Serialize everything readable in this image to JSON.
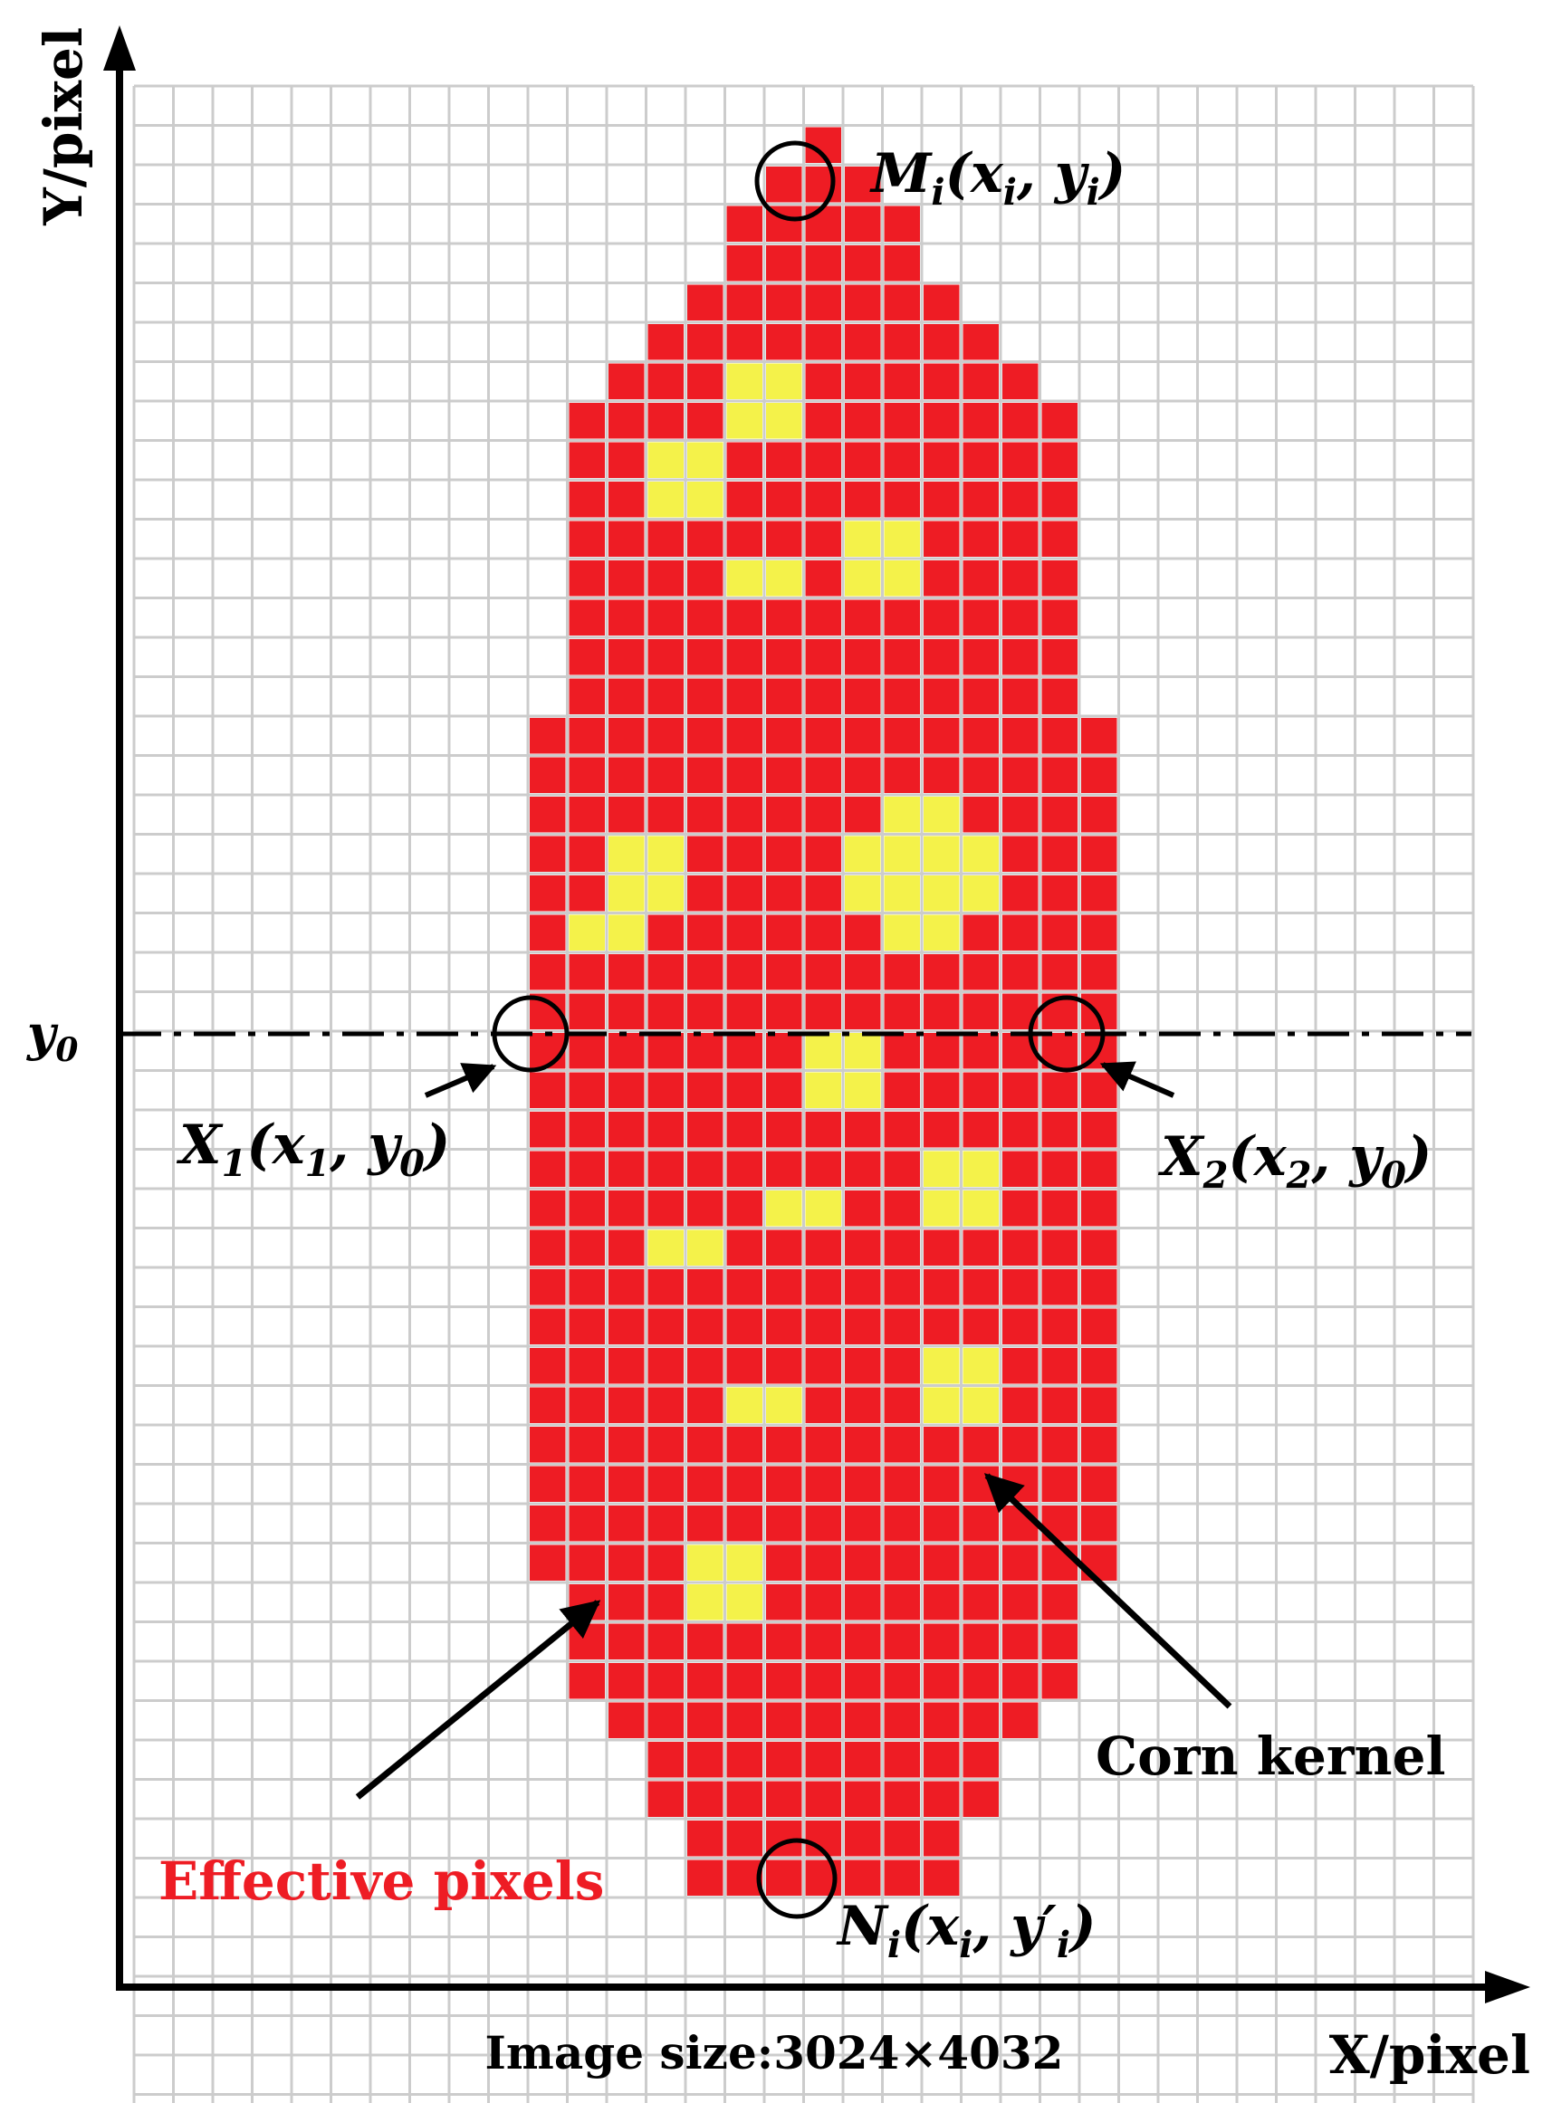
{
  "axes": {
    "y_label": "Y/pixel",
    "x_label": "X/pixel",
    "y0_label": "y",
    "y0_sub": "0"
  },
  "image_size": "Image size:3024×4032",
  "points": {
    "M": {
      "name": "M",
      "sub": "i",
      "x": "x",
      "xsub": "i",
      "y": "y",
      "ysub": "i"
    },
    "N": {
      "name": "N",
      "sub": "i",
      "x": "x",
      "xsub": "i",
      "y": "y′",
      "ysub": "i"
    },
    "X1": {
      "name": "X",
      "sub": "1",
      "x": "x",
      "xsub": "1",
      "y": "y",
      "ysub": "0"
    },
    "X2": {
      "name": "X",
      "sub": "2",
      "x": "x",
      "xsub": "2",
      "y": "y",
      "ysub": "0"
    }
  },
  "labels": {
    "corn_kernel": "Corn kernel",
    "effective_pixels": "Effective pixels"
  },
  "colors": {
    "kernel": "#ee1c24",
    "highlight": "#f4f24a",
    "grid": "#cccccc",
    "effective_text": "#ee1c24",
    "axis": "#000000"
  },
  "grid": {
    "cols": 34,
    "rows": 52,
    "kernel_rows": [
      [
        17,
        17
      ],
      [
        16,
        18
      ],
      [
        15,
        19
      ],
      [
        15,
        19
      ],
      [
        14,
        20
      ],
      [
        13,
        21
      ],
      [
        12,
        22
      ],
      [
        11,
        23
      ],
      [
        11,
        23
      ],
      [
        11,
        23
      ],
      [
        11,
        23
      ],
      [
        11,
        23
      ],
      [
        11,
        23
      ],
      [
        11,
        23
      ],
      [
        11,
        23
      ],
      [
        10,
        24
      ],
      [
        10,
        24
      ],
      [
        10,
        24
      ],
      [
        10,
        24
      ],
      [
        10,
        24
      ],
      [
        10,
        24
      ],
      [
        10,
        24
      ],
      [
        10,
        24
      ],
      [
        10,
        24
      ],
      [
        10,
        24
      ],
      [
        10,
        24
      ],
      [
        10,
        24
      ],
      [
        10,
        24
      ],
      [
        10,
        24
      ],
      [
        10,
        24
      ],
      [
        10,
        24
      ],
      [
        10,
        24
      ],
      [
        10,
        24
      ],
      [
        10,
        24
      ],
      [
        10,
        24
      ],
      [
        10,
        24
      ],
      [
        10,
        24
      ],
      [
        11,
        23
      ],
      [
        11,
        23
      ],
      [
        11,
        23
      ],
      [
        12,
        22
      ],
      [
        13,
        21
      ],
      [
        13,
        21
      ],
      [
        14,
        20
      ],
      [
        14,
        20
      ]
    ],
    "highlight_cells": [
      [
        15,
        7
      ],
      [
        16,
        7
      ],
      [
        15,
        8
      ],
      [
        16,
        8
      ],
      [
        13,
        9
      ],
      [
        14,
        9
      ],
      [
        13,
        10
      ],
      [
        14,
        10
      ],
      [
        18,
        11
      ],
      [
        19,
        11
      ],
      [
        18,
        12
      ],
      [
        19,
        12
      ],
      [
        15,
        12
      ],
      [
        16,
        12
      ],
      [
        19,
        18
      ],
      [
        20,
        18
      ],
      [
        12,
        19
      ],
      [
        13,
        19
      ],
      [
        12,
        20
      ],
      [
        13,
        20
      ],
      [
        18,
        19
      ],
      [
        19,
        19
      ],
      [
        20,
        19
      ],
      [
        21,
        19
      ],
      [
        18,
        20
      ],
      [
        19,
        20
      ],
      [
        20,
        20
      ],
      [
        21,
        20
      ],
      [
        19,
        21
      ],
      [
        20,
        21
      ],
      [
        11,
        21
      ],
      [
        12,
        21
      ],
      [
        17,
        24
      ],
      [
        18,
        24
      ],
      [
        17,
        25
      ],
      [
        18,
        25
      ],
      [
        20,
        27
      ],
      [
        21,
        27
      ],
      [
        20,
        28
      ],
      [
        21,
        28
      ],
      [
        16,
        28
      ],
      [
        17,
        28
      ],
      [
        13,
        29
      ],
      [
        14,
        29
      ],
      [
        20,
        32
      ],
      [
        21,
        32
      ],
      [
        20,
        33
      ],
      [
        21,
        33
      ],
      [
        15,
        33
      ],
      [
        16,
        33
      ],
      [
        14,
        37
      ],
      [
        15,
        37
      ],
      [
        14,
        38
      ],
      [
        15,
        38
      ]
    ]
  }
}
